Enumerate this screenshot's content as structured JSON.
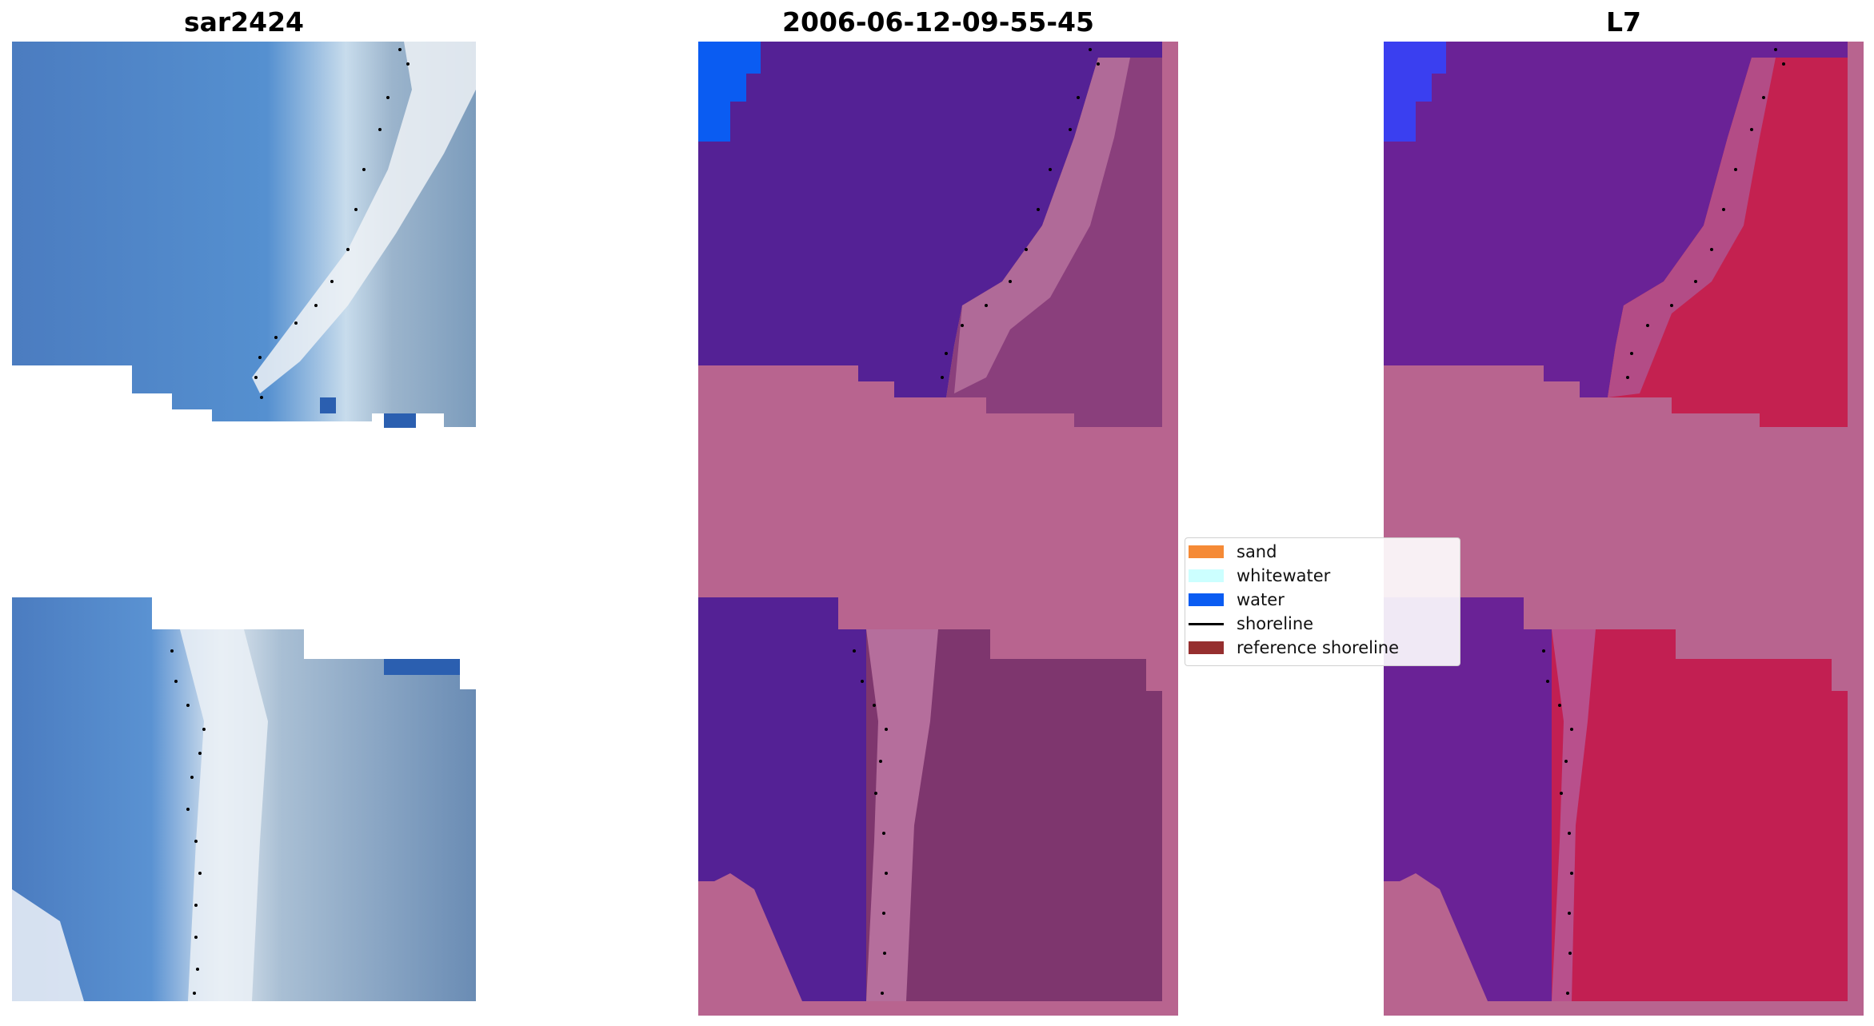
{
  "panels": [
    {
      "title": "sar2424"
    },
    {
      "title": "2006-06-12-09-55-45"
    },
    {
      "title": "L7"
    }
  ],
  "legend": {
    "items": [
      {
        "label": "sand",
        "color": "#f58a36"
      },
      {
        "label": "whitewater",
        "color": "#ccffff"
      },
      {
        "label": "water",
        "color": "#0a5cf2"
      },
      {
        "label": "shoreline",
        "color": "#000000"
      },
      {
        "label": "reference shoreline",
        "color": "#962f2f"
      }
    ]
  },
  "colors": {
    "water_blue": "#4a7fc4",
    "surf_white": "#e6ecf2",
    "land_grey": "#7a9ab8",
    "water_class": "#542195",
    "beach_pink": "#b8648f",
    "land_purple": "#7a3470",
    "bright_blue": "#0a5cf2",
    "l7_water": "#5c1c9c",
    "l7_land": "#c21f52"
  }
}
